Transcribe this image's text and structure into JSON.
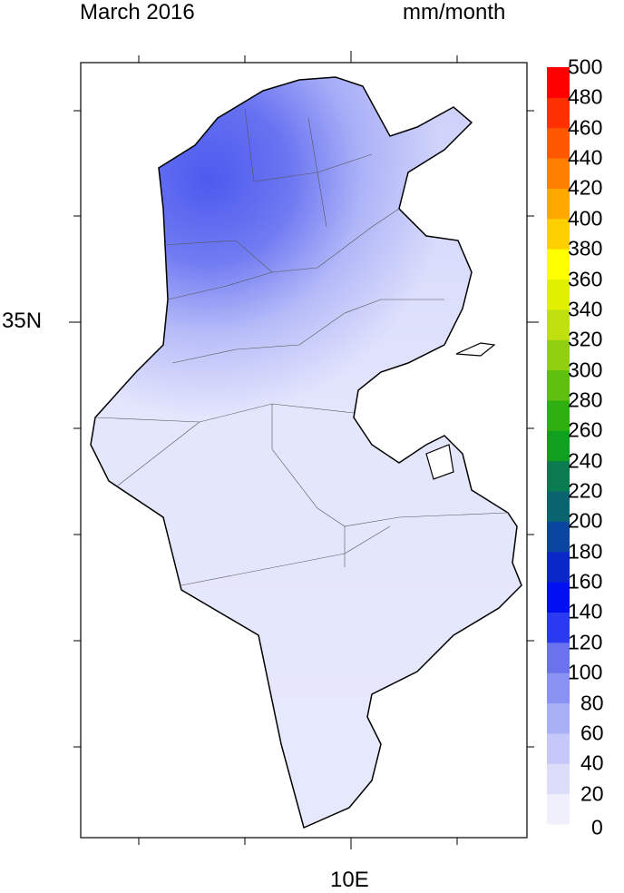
{
  "header": {
    "title": "March 2016",
    "units": "mm/month"
  },
  "axes": {
    "x_label": "10E",
    "y_label": "35N"
  },
  "colorbar": {
    "min": 0,
    "max": 500,
    "step": 20,
    "labels": [
      "0",
      "20",
      "40",
      "60",
      "80",
      "100",
      "120",
      "140",
      "160",
      "180",
      "200",
      "220",
      "240",
      "260",
      "280",
      "300",
      "320",
      "340",
      "360",
      "380",
      "400",
      "420",
      "440",
      "460",
      "480",
      "500"
    ],
    "colors": [
      "#f0f0fd",
      "#dcdcfb",
      "#c5c8f9",
      "#aab0f6",
      "#8a92f2",
      "#6a72ee",
      "#2a3af0",
      "#0010f0",
      "#0a28c8",
      "#0a46a0",
      "#0a6470",
      "#0a7a50",
      "#10a020",
      "#30b010",
      "#60c010",
      "#90d010",
      "#c0e010",
      "#e0f000",
      "#ffff00",
      "#ffd000",
      "#ffa800",
      "#ff8000",
      "#ff5800",
      "#ff3000",
      "#ff0000"
    ]
  }
}
